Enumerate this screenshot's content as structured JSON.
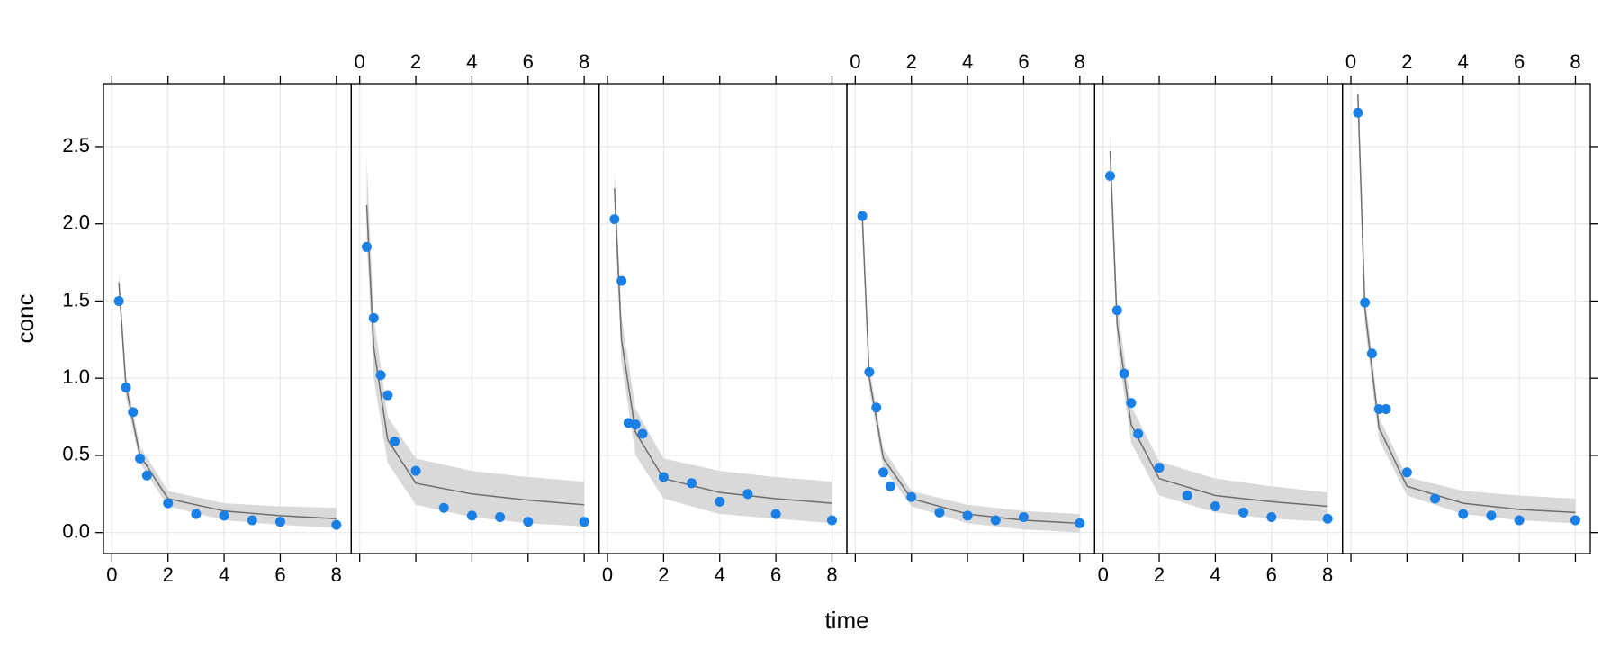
{
  "chart_data": {
    "type": "scatter",
    "xlabel": "time",
    "ylabel": "conc",
    "xlim": [
      -0.3,
      8.53
    ],
    "ylim": [
      -0.136,
      2.908
    ],
    "xticks": [
      0,
      2,
      4,
      6,
      8
    ],
    "yticks": [
      {
        "value": 0,
        "label": "0.0"
      },
      0.5,
      {
        "value": 1,
        "label": "1.0"
      },
      1.5,
      {
        "value": 2,
        "label": "2.0"
      },
      2.5
    ],
    "grid": true,
    "point_color": "#1a80e6",
    "line_color": "#6e6e6e",
    "band_color": "#d9d9d9",
    "x": [
      0.25,
      0.5,
      0.75,
      1,
      1.25,
      2,
      3,
      4,
      5,
      6,
      8
    ],
    "fit_x": [
      0.25,
      0.5,
      1,
      2,
      4,
      6,
      8
    ],
    "panels": [
      {
        "values": [
          1.5,
          0.94,
          0.78,
          0.48,
          0.37,
          0.19,
          0.12,
          0.11,
          0.08,
          0.07,
          0.05
        ],
        "fit": [
          1.62,
          0.95,
          0.5,
          0.22,
          0.14,
          0.11,
          0.09
        ],
        "lower": [
          1.55,
          0.88,
          0.45,
          0.17,
          0.08,
          0.05,
          0.03
        ],
        "upper": [
          1.7,
          1.02,
          0.56,
          0.27,
          0.19,
          0.17,
          0.16
        ]
      },
      {
        "values": [
          1.85,
          1.39,
          1.02,
          0.89,
          0.59,
          0.4,
          0.16,
          0.11,
          0.1,
          0.07,
          0.07
        ],
        "fit": [
          2.12,
          1.2,
          0.6,
          0.32,
          0.25,
          0.21,
          0.18
        ],
        "lower": [
          1.9,
          1.0,
          0.45,
          0.18,
          0.1,
          0.06,
          0.04
        ],
        "upper": [
          2.43,
          1.4,
          0.75,
          0.48,
          0.4,
          0.36,
          0.33
        ]
      },
      {
        "values": [
          2.03,
          1.63,
          0.71,
          0.7,
          0.64,
          0.36,
          0.32,
          0.2,
          0.25,
          0.12,
          0.08
        ],
        "fit": [
          2.23,
          1.25,
          0.65,
          0.35,
          0.26,
          0.22,
          0.19
        ],
        "lower": [
          2.1,
          1.1,
          0.5,
          0.22,
          0.12,
          0.09,
          0.06
        ],
        "upper": [
          2.36,
          1.4,
          0.8,
          0.48,
          0.4,
          0.36,
          0.33
        ]
      },
      {
        "values": [
          2.05,
          1.04,
          0.81,
          0.39,
          0.3,
          0.23,
          0.13,
          0.11,
          0.08,
          0.1,
          0.06
        ],
        "fit": [
          2.05,
          1.0,
          0.48,
          0.22,
          0.12,
          0.08,
          0.06
        ],
        "lower": [
          1.95,
          0.93,
          0.42,
          0.17,
          0.06,
          0.02,
          0.0
        ],
        "upper": [
          2.15,
          1.07,
          0.54,
          0.27,
          0.18,
          0.14,
          0.12
        ]
      },
      {
        "values": [
          2.31,
          1.44,
          1.03,
          0.84,
          0.64,
          0.42,
          0.24,
          0.17,
          0.13,
          0.1,
          0.09
        ],
        "fit": [
          2.47,
          1.35,
          0.7,
          0.35,
          0.24,
          0.2,
          0.17
        ],
        "lower": [
          2.35,
          1.22,
          0.58,
          0.24,
          0.13,
          0.09,
          0.07
        ],
        "upper": [
          2.6,
          1.48,
          0.82,
          0.46,
          0.35,
          0.3,
          0.26
        ]
      },
      {
        "values": [
          2.72,
          1.49,
          1.16,
          0.8,
          0.8,
          0.39,
          0.22,
          0.12,
          0.11,
          0.08,
          0.08
        ],
        "fit": [
          2.84,
          1.45,
          0.68,
          0.3,
          0.19,
          0.15,
          0.13
        ],
        "lower": [
          2.7,
          1.35,
          0.6,
          0.24,
          0.12,
          0.08,
          0.06
        ],
        "upper": [
          2.95,
          1.55,
          0.75,
          0.36,
          0.27,
          0.24,
          0.22
        ]
      }
    ]
  }
}
